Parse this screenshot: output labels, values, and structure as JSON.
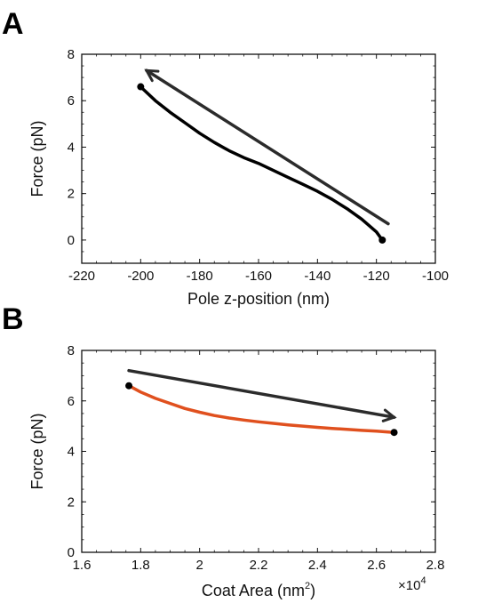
{
  "panels": {
    "a": {
      "letter": "A"
    },
    "b": {
      "letter": "B"
    }
  },
  "chart_data": [
    {
      "type": "line",
      "panel": "A",
      "xlabel": "Pole z-position (nm)",
      "ylabel": "Force (pN)",
      "xlim": [
        -220,
        -100
      ],
      "ylim": [
        -1,
        8
      ],
      "xticks": [
        -220,
        -200,
        -180,
        -160,
        -140,
        -120,
        -100
      ],
      "yticks": [
        0,
        2,
        4,
        6,
        8
      ],
      "grid": false,
      "series": [
        {
          "color": "#000000",
          "x": [
            -200,
            -195,
            -190,
            -185,
            -180,
            -175,
            -170,
            -165,
            -160,
            -155,
            -150,
            -145,
            -140,
            -135,
            -130,
            -125,
            -120,
            -118
          ],
          "y": [
            6.6,
            6.0,
            5.5,
            5.05,
            4.6,
            4.2,
            3.85,
            3.55,
            3.3,
            3.0,
            2.7,
            2.4,
            2.1,
            1.75,
            1.35,
            0.9,
            0.35,
            0.0
          ]
        }
      ],
      "endpoints": [
        {
          "x": -200,
          "y": 6.6
        },
        {
          "x": -118,
          "y": 0.0
        }
      ],
      "arrow": {
        "from": {
          "x": -116,
          "y": 0.7
        },
        "to": {
          "x": -198,
          "y": 7.3
        },
        "color": "#2b2b2b"
      }
    },
    {
      "type": "line",
      "panel": "B",
      "xlabel": "Coat Area (nm",
      "xlabel_sup": "2",
      "xlabel_tail": ")",
      "ylabel": "Force (pN)",
      "xlim": [
        1.6,
        2.8
      ],
      "ylim": [
        0,
        8
      ],
      "xticks": [
        1.6,
        1.8,
        2,
        2.2,
        2.4,
        2.6,
        2.8
      ],
      "yticks": [
        0,
        2,
        4,
        6,
        8
      ],
      "x_multiplier": "×10",
      "x_multiplier_exp": "4",
      "grid": false,
      "series": [
        {
          "color": "#e0501e",
          "x": [
            1.76,
            1.8,
            1.85,
            1.9,
            1.95,
            2.0,
            2.05,
            2.1,
            2.15,
            2.2,
            2.25,
            2.3,
            2.35,
            2.4,
            2.45,
            2.5,
            2.55,
            2.6,
            2.66
          ],
          "y": [
            6.6,
            6.35,
            6.1,
            5.9,
            5.7,
            5.55,
            5.42,
            5.32,
            5.24,
            5.17,
            5.11,
            5.05,
            5.0,
            4.95,
            4.91,
            4.87,
            4.83,
            4.8,
            4.75
          ]
        }
      ],
      "endpoints": [
        {
          "x": 1.76,
          "y": 6.6
        },
        {
          "x": 2.66,
          "y": 4.75
        }
      ],
      "arrow": {
        "from": {
          "x": 1.76,
          "y": 7.2
        },
        "to": {
          "x": 2.66,
          "y": 5.35
        },
        "color": "#2b2b2b"
      }
    }
  ]
}
